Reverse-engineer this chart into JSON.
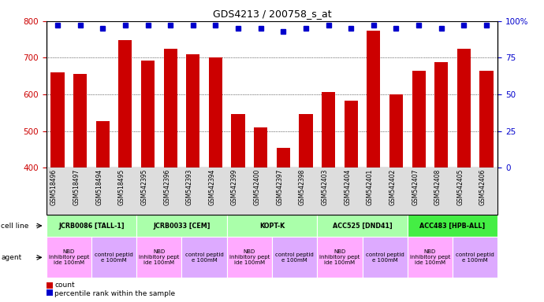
{
  "title": "GDS4213 / 200758_s_at",
  "samples": [
    "GSM518496",
    "GSM518497",
    "GSM518494",
    "GSM518495",
    "GSM542395",
    "GSM542396",
    "GSM542393",
    "GSM542394",
    "GSM542399",
    "GSM542400",
    "GSM542397",
    "GSM542398",
    "GSM542403",
    "GSM542404",
    "GSM542401",
    "GSM542402",
    "GSM542407",
    "GSM542408",
    "GSM542405",
    "GSM542406"
  ],
  "counts": [
    660,
    655,
    528,
    748,
    692,
    725,
    710,
    700,
    547,
    510,
    455,
    547,
    607,
    582,
    775,
    600,
    665,
    688,
    725,
    665
  ],
  "percentile_ranks": [
    97,
    97,
    95,
    97,
    97,
    97,
    97,
    97,
    95,
    95,
    93,
    95,
    97,
    95,
    97,
    95,
    97,
    95,
    97,
    97
  ],
  "cell_lines": [
    {
      "label": "JCRB0086 [TALL-1]",
      "start": 0,
      "end": 4,
      "color": "#aaffaa"
    },
    {
      "label": "JCRB0033 [CEM]",
      "start": 4,
      "end": 8,
      "color": "#aaffaa"
    },
    {
      "label": "KOPT-K",
      "start": 8,
      "end": 12,
      "color": "#aaffaa"
    },
    {
      "label": "ACC525 [DND41]",
      "start": 12,
      "end": 16,
      "color": "#aaffaa"
    },
    {
      "label": "ACC483 [HPB-ALL]",
      "start": 16,
      "end": 20,
      "color": "#44ee44"
    }
  ],
  "agents": [
    {
      "label": "NBD\ninhibitory pept\nide 100mM",
      "start": 0,
      "end": 2,
      "color": "#ffaaff"
    },
    {
      "label": "control peptid\ne 100mM",
      "start": 2,
      "end": 4,
      "color": "#ddaaff"
    },
    {
      "label": "NBD\ninhibitory pept\nide 100mM",
      "start": 4,
      "end": 6,
      "color": "#ffaaff"
    },
    {
      "label": "control peptid\ne 100mM",
      "start": 6,
      "end": 8,
      "color": "#ddaaff"
    },
    {
      "label": "NBD\ninhibitory pept\nide 100mM",
      "start": 8,
      "end": 10,
      "color": "#ffaaff"
    },
    {
      "label": "control peptid\ne 100mM",
      "start": 10,
      "end": 12,
      "color": "#ddaaff"
    },
    {
      "label": "NBD\ninhibitory pept\nide 100mM",
      "start": 12,
      "end": 14,
      "color": "#ffaaff"
    },
    {
      "label": "control peptid\ne 100mM",
      "start": 14,
      "end": 16,
      "color": "#ddaaff"
    },
    {
      "label": "NBD\ninhibitory pept\nide 100mM",
      "start": 16,
      "end": 18,
      "color": "#ffaaff"
    },
    {
      "label": "control peptid\ne 100mM",
      "start": 18,
      "end": 20,
      "color": "#ddaaff"
    }
  ],
  "bar_color": "#CC0000",
  "dot_color": "#0000CC",
  "ylim_left": [
    400,
    800
  ],
  "ylim_right": [
    0,
    100
  ],
  "yticks_left": [
    400,
    500,
    600,
    700,
    800
  ],
  "yticks_right": [
    0,
    25,
    50,
    75,
    100
  ],
  "background_color": "#FFFFFF"
}
